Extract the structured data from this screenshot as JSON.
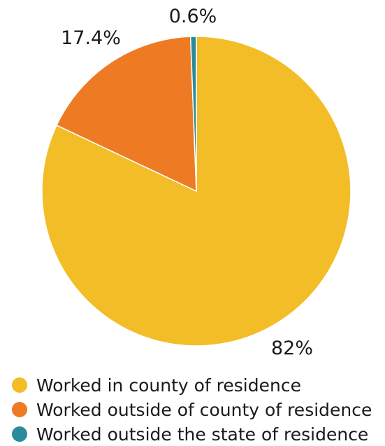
{
  "chart_data": {
    "type": "pie",
    "categories": [
      "Worked in county of residence",
      "Worked outside of county of residence",
      "Worked outside the state of residence"
    ],
    "values": [
      82,
      17.4,
      0.6
    ],
    "data_labels": [
      "82%",
      "17.4%",
      "0.6%"
    ],
    "colors": [
      "#F2BD26",
      "#EE7B24",
      "#2A8B9C"
    ],
    "start": "12 o'clock",
    "direction": "clockwise",
    "legend_position": "bottom-left"
  }
}
